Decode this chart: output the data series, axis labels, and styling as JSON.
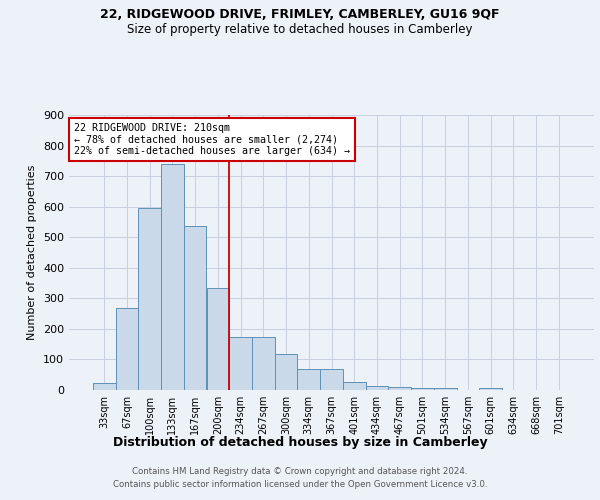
{
  "title1": "22, RIDGEWOOD DRIVE, FRIMLEY, CAMBERLEY, GU16 9QF",
  "title2": "Size of property relative to detached houses in Camberley",
  "xlabel": "Distribution of detached houses by size in Camberley",
  "ylabel": "Number of detached properties",
  "footer1": "Contains HM Land Registry data © Crown copyright and database right 2024.",
  "footer2": "Contains public sector information licensed under the Open Government Licence v3.0.",
  "bar_labels": [
    "33sqm",
    "67sqm",
    "100sqm",
    "133sqm",
    "167sqm",
    "200sqm",
    "234sqm",
    "267sqm",
    "300sqm",
    "334sqm",
    "367sqm",
    "401sqm",
    "434sqm",
    "467sqm",
    "501sqm",
    "534sqm",
    "567sqm",
    "601sqm",
    "634sqm",
    "668sqm",
    "701sqm"
  ],
  "bar_values": [
    22,
    270,
    597,
    738,
    537,
    335,
    175,
    175,
    117,
    68,
    68,
    25,
    14,
    10,
    8,
    8,
    0,
    8,
    0,
    0,
    0
  ],
  "bar_color": "#c9d9e9",
  "bar_edge_color": "#6090b8",
  "grid_color": "#c8cfe0",
  "vline_x": 5.5,
  "vline_color": "#cc0000",
  "annotation_line1": "22 RIDGEWOOD DRIVE: 210sqm",
  "annotation_line2": "← 78% of detached houses are smaller (2,274)",
  "annotation_line3": "22% of semi-detached houses are larger (634) →",
  "annotation_box_color": "#ffffff",
  "annotation_box_edge": "#cc0000",
  "ylim": [
    0,
    900
  ],
  "yticks": [
    0,
    100,
    200,
    300,
    400,
    500,
    600,
    700,
    800,
    900
  ],
  "bg_color": "#edf2f8",
  "plot_bg_color": "#edf2f8"
}
